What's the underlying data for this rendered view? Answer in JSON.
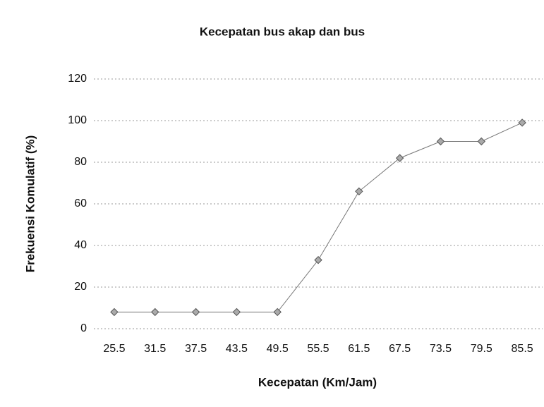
{
  "chart_data": {
    "type": "line",
    "title": "Kecepatan bus akap dan bus",
    "x_label": "Kecepatan (Km/Jam)",
    "y_label": "Frekuensi Komulatif (%)",
    "categories": [
      "25.5",
      "31.5",
      "37.5",
      "43.5",
      "49.5",
      "55.5",
      "61.5",
      "67.5",
      "73.5",
      "79.5",
      "85.5"
    ],
    "values": [
      8,
      8,
      8,
      8,
      8,
      33,
      66,
      82,
      90,
      90,
      99
    ],
    "color": "#777777",
    "ylim": [
      0,
      120
    ],
    "yticks": [
      0,
      20,
      40,
      60,
      80,
      100,
      120
    ],
    "grid": true
  }
}
